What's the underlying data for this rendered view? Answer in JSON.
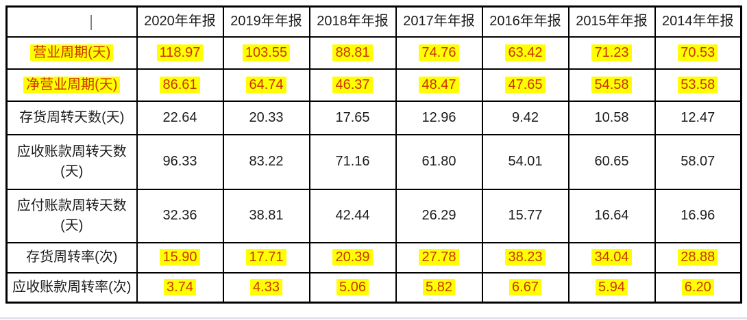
{
  "table": {
    "corner_cursor": "|",
    "headers": [
      "2020年年报",
      "2019年年报",
      "2018年年报",
      "2017年年报",
      "2016年年报",
      "2015年年报",
      "2014年年报"
    ],
    "rows": [
      {
        "label": "营业周期(天)",
        "highlighted": true,
        "values": [
          "118.97",
          "103.55",
          "88.81",
          "74.76",
          "63.42",
          "71.23",
          "70.53"
        ]
      },
      {
        "label": "净营业周期(天)",
        "highlighted": true,
        "values": [
          "86.61",
          "64.74",
          "46.37",
          "48.47",
          "47.65",
          "54.58",
          "53.58"
        ]
      },
      {
        "label": "存货周转天数(天)",
        "highlighted": false,
        "values": [
          "22.64",
          "20.33",
          "17.65",
          "12.96",
          "9.42",
          "10.58",
          "12.47"
        ]
      },
      {
        "label": "应收账款周转天数(天)",
        "highlighted": false,
        "values": [
          "96.33",
          "83.22",
          "71.16",
          "61.80",
          "54.01",
          "60.65",
          "58.07"
        ]
      },
      {
        "label": "应付账款周转天数(天)",
        "highlighted": false,
        "values": [
          "32.36",
          "38.81",
          "42.44",
          "26.29",
          "15.77",
          "16.64",
          "16.96"
        ]
      },
      {
        "label": "存货周转率(次)",
        "highlighted": true,
        "values": [
          "15.90",
          "17.71",
          "20.39",
          "27.78",
          "38.23",
          "34.04",
          "28.88"
        ]
      },
      {
        "label": "应收账款周转率(次)",
        "highlighted": true,
        "values": [
          "3.74",
          "4.33",
          "5.06",
          "5.82",
          "6.67",
          "5.94",
          "6.20"
        ]
      }
    ],
    "colors": {
      "highlight_bg": "#ffff00",
      "highlight_text": "#cc3300",
      "text": "#1c1c1c",
      "border": "#000000"
    }
  },
  "chart_data": {
    "type": "table",
    "title": "",
    "categories": [
      "2020年年报",
      "2019年年报",
      "2018年年报",
      "2017年年报",
      "2016年年报",
      "2015年年报",
      "2014年年报"
    ],
    "series": [
      {
        "name": "营业周期(天)",
        "values": [
          118.97,
          103.55,
          88.81,
          74.76,
          63.42,
          71.23,
          70.53
        ],
        "highlighted": true
      },
      {
        "name": "净营业周期(天)",
        "values": [
          86.61,
          64.74,
          46.37,
          48.47,
          47.65,
          54.58,
          53.58
        ],
        "highlighted": true
      },
      {
        "name": "存货周转天数(天)",
        "values": [
          22.64,
          20.33,
          17.65,
          12.96,
          9.42,
          10.58,
          12.47
        ],
        "highlighted": false
      },
      {
        "name": "应收账款周转天数(天)",
        "values": [
          96.33,
          83.22,
          71.16,
          61.8,
          54.01,
          60.65,
          58.07
        ],
        "highlighted": false
      },
      {
        "name": "应付账款周转天数(天)",
        "values": [
          32.36,
          38.81,
          42.44,
          26.29,
          15.77,
          16.64,
          16.96
        ],
        "highlighted": false
      },
      {
        "name": "存货周转率(次)",
        "values": [
          15.9,
          17.71,
          20.39,
          27.78,
          38.23,
          34.04,
          28.88
        ],
        "highlighted": true
      },
      {
        "name": "应收账款周转率(次)",
        "values": [
          3.74,
          4.33,
          5.06,
          5.82,
          6.67,
          5.94,
          6.2
        ],
        "highlighted": true
      }
    ],
    "layout": {
      "grid": true,
      "header_row": true,
      "label_column_first": true
    }
  }
}
